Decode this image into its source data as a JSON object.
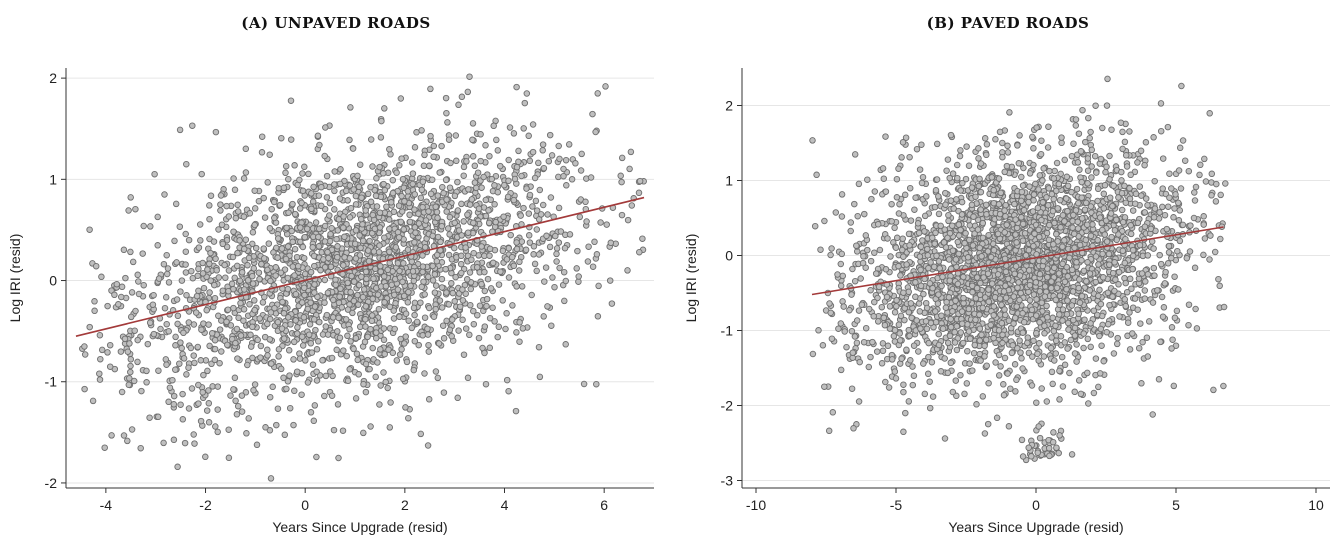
{
  "chart_data": [
    {
      "type": "scatter",
      "title": "(A) UNPAVED ROADS",
      "xlabel": "Years Since Upgrade (resid)",
      "ylabel": "Log IRI (resid)",
      "xlim": [
        -4.8,
        7.0
      ],
      "ylim": [
        -2.05,
        2.1
      ],
      "xticks": [
        -4,
        -2,
        0,
        2,
        4,
        6
      ],
      "yticks": [
        -2,
        -1,
        0,
        1,
        2
      ],
      "grid": true,
      "fit_line": {
        "x": [
          -4.6,
          6.8
        ],
        "y": [
          -0.55,
          0.82
        ]
      },
      "marker_color": "#bfbfbf",
      "marker_edge": "#6e6e6e",
      "line_color": "#a33a3a",
      "cloud": {
        "x_range": [
          -4.5,
          6.8
        ],
        "y_spread": 0.6,
        "n": 2600
      }
    },
    {
      "type": "scatter",
      "title": "(B) PAVED ROADS",
      "xlabel": "Years Since Upgrade (resid)",
      "ylabel": "Log IRI (resid)",
      "xlim": [
        -10.5,
        10.5
      ],
      "ylim": [
        -3.1,
        2.5
      ],
      "xticks": [
        -10,
        -5,
        0,
        5,
        10
      ],
      "yticks": [
        -3,
        -2,
        -1,
        0,
        1,
        2
      ],
      "grid": true,
      "fit_line": {
        "x": [
          -8.0,
          6.7
        ],
        "y": [
          -0.52,
          0.38
        ]
      },
      "marker_color": "#bfbfbf",
      "marker_edge": "#6e6e6e",
      "line_color": "#a33a3a",
      "cloud": {
        "x_range": [
          -8.0,
          6.8
        ],
        "y_spread": 0.75,
        "n": 3000
      },
      "outlier_cluster": {
        "x_center": 0.3,
        "y_center": -2.55,
        "n": 40
      }
    }
  ]
}
